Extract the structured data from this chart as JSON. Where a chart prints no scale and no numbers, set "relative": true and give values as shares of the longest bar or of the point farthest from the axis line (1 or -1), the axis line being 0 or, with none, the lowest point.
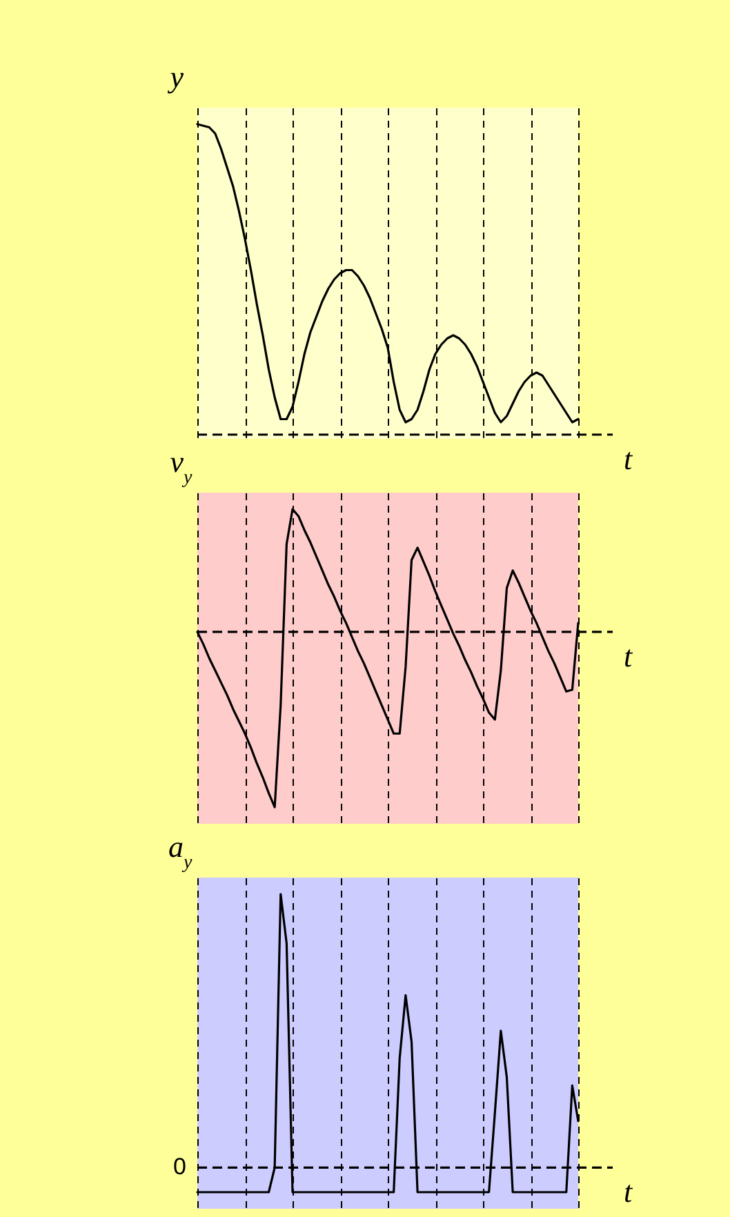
{
  "chart_data": [
    {
      "type": "line",
      "ylabel": "y",
      "xlabel": "t",
      "relative": true,
      "grid": "x",
      "ref_lines": [
        {
          "axis": "y",
          "value": 0,
          "line_style": "dashed"
        }
      ],
      "categories": [
        null,
        null,
        null,
        null,
        null,
        null,
        null,
        null,
        null,
        null,
        null,
        null,
        null,
        null,
        null,
        null,
        null,
        null,
        null,
        null,
        null,
        null,
        null,
        null,
        null,
        null,
        null,
        null,
        null,
        null,
        null,
        null,
        null,
        null,
        null,
        null,
        null,
        null,
        null,
        null,
        null,
        null,
        null,
        null,
        null,
        null,
        null,
        null,
        null,
        null,
        null,
        null,
        null,
        null,
        null,
        null,
        null,
        null,
        null,
        null,
        null,
        null,
        null,
        null,
        null
      ],
      "series": [
        {
          "color": "#000000",
          "values": [
            1,
            0.995,
            0.99,
            0.97,
            0.92,
            0.86,
            0.8,
            0.72,
            0.63,
            0.53,
            0.42,
            0.32,
            0.21,
            0.12,
            0.05,
            0.05,
            0.09,
            0.17,
            0.26,
            0.33,
            0.38,
            0.43,
            0.47,
            0.5,
            0.52,
            0.53,
            0.53,
            0.51,
            0.48,
            0.44,
            0.39,
            0.34,
            0.28,
            0.17,
            0.08,
            0.04,
            0.05,
            0.08,
            0.14,
            0.21,
            0.26,
            0.29,
            0.31,
            0.32,
            0.31,
            0.29,
            0.26,
            0.22,
            0.17,
            0.12,
            0.07,
            0.04,
            0.06,
            0.1,
            0.14,
            0.17,
            0.19,
            0.2,
            0.19,
            0.16,
            0.13,
            0.1,
            0.07,
            0.04,
            0.05
          ]
        }
      ]
    },
    {
      "type": "line",
      "ylabel": "v$_{y}$",
      "xlabel": "t",
      "relative": true,
      "grid": "x",
      "ref_lines": [
        {
          "axis": "y",
          "value": 0,
          "line_style": "dashed"
        }
      ],
      "categories": [
        null,
        null,
        null,
        null,
        null,
        null,
        null,
        null,
        null,
        null,
        null,
        null,
        null,
        null,
        null,
        null,
        null,
        null,
        null,
        null,
        null,
        null,
        null,
        null,
        null,
        null,
        null,
        null,
        null,
        null,
        null,
        null,
        null,
        null,
        null,
        null,
        null,
        null,
        null,
        null,
        null,
        null,
        null,
        null,
        null,
        null,
        null,
        null,
        null,
        null,
        null,
        null,
        null,
        null,
        null,
        null,
        null,
        null,
        null,
        null,
        null,
        null,
        null,
        null,
        null
      ],
      "series": [
        {
          "color": "#000000",
          "values": [
            0,
            -0.07,
            -0.15,
            -0.22,
            -0.29,
            -0.36,
            -0.44,
            -0.51,
            -0.58,
            -0.66,
            -0.75,
            -0.83,
            -0.92,
            -1,
            -0.42,
            0.5,
            0.7,
            0.66,
            0.58,
            0.51,
            0.43,
            0.35,
            0.27,
            0.2,
            0.12,
            0.05,
            -0.03,
            -0.11,
            -0.18,
            -0.26,
            -0.34,
            -0.42,
            -0.5,
            -0.58,
            -0.58,
            -0.2,
            0.41,
            0.48,
            0.4,
            0.32,
            0.23,
            0.15,
            0.07,
            -0.01,
            -0.08,
            -0.16,
            -0.23,
            -0.31,
            -0.38,
            -0.46,
            -0.5,
            -0.22,
            0.25,
            0.35,
            0.28,
            0.2,
            0.12,
            0.05,
            -0.03,
            -0.11,
            -0.18,
            -0.26,
            -0.34,
            -0.33,
            0.05
          ]
        }
      ]
    },
    {
      "type": "line",
      "ylabel": "a$_{y}$",
      "xlabel": "t",
      "relative": true,
      "grid": "x",
      "ref_lines": [
        {
          "axis": "y",
          "value": 0,
          "line_style": "dashed"
        }
      ],
      "annotations": [
        "0"
      ],
      "categories": [
        null,
        null,
        null,
        null,
        null,
        null,
        null,
        null,
        null,
        null,
        null,
        null,
        null,
        null,
        null,
        null,
        null,
        null,
        null,
        null,
        null,
        null,
        null,
        null,
        null,
        null,
        null,
        null,
        null,
        null,
        null,
        null,
        null,
        null,
        null,
        null,
        null,
        null,
        null,
        null,
        null,
        null,
        null,
        null,
        null,
        null,
        null,
        null,
        null,
        null,
        null,
        null,
        null,
        null,
        null,
        null,
        null,
        null,
        null,
        null,
        null,
        null,
        null,
        null,
        null
      ],
      "series": [
        {
          "color": "#000000",
          "values": [
            -0.09,
            -0.09,
            -0.09,
            -0.09,
            -0.09,
            -0.09,
            -0.09,
            -0.09,
            -0.09,
            -0.09,
            -0.09,
            -0.09,
            -0.09,
            0,
            1,
            0.82,
            -0.09,
            -0.09,
            -0.09,
            -0.09,
            -0.09,
            -0.09,
            -0.09,
            -0.09,
            -0.09,
            -0.09,
            -0.09,
            -0.09,
            -0.09,
            -0.09,
            -0.09,
            -0.09,
            -0.09,
            -0.09,
            0.4,
            0.63,
            0.46,
            -0.09,
            -0.09,
            -0.09,
            -0.09,
            -0.09,
            -0.09,
            -0.09,
            -0.09,
            -0.09,
            -0.09,
            -0.09,
            -0.09,
            -0.09,
            0.2,
            0.5,
            0.33,
            -0.09,
            -0.09,
            -0.09,
            -0.09,
            -0.09,
            -0.09,
            -0.09,
            -0.09,
            -0.09,
            -0.09,
            0.3,
            0.17
          ]
        }
      ]
    }
  ]
}
